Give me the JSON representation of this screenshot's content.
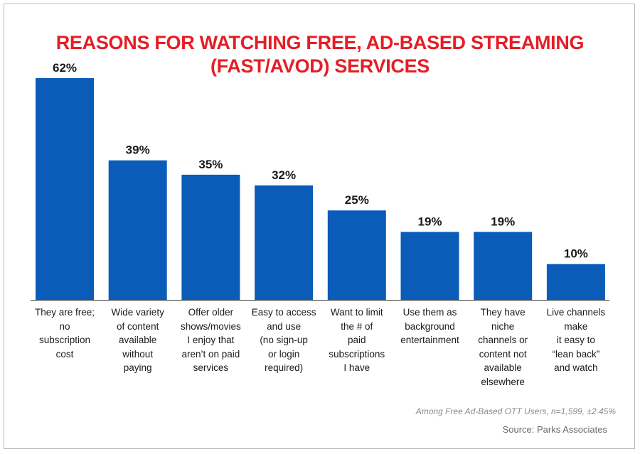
{
  "chart_data": {
    "type": "bar",
    "title_lines": [
      "REASONS FOR WATCHING FREE, AD-BASED STREAMING",
      "(FAST/AVOD) SERVICES"
    ],
    "categories": [
      "They are free;\nno\nsubscription\ncost",
      "Wide variety\nof content\navailable\nwithout\npaying",
      "Offer older\nshows/movies\nI enjoy that\naren’t on paid\nservices",
      "Easy to access\nand use\n(no sign-up\nor login\nrequired)",
      "Want to limit\nthe # of\npaid\nsubscriptions\nI have",
      "Use them as\nbackground\nentertainment",
      "They have\nniche\nchannels or\ncontent not\navailable\nelsewhere",
      "Live channels\nmake\nit easy to\n“lean back”\nand watch"
    ],
    "values": [
      62,
      39,
      35,
      32,
      25,
      19,
      19,
      10
    ],
    "value_labels": [
      "62%",
      "39%",
      "35%",
      "32%",
      "25%",
      "19%",
      "19%",
      "10%"
    ],
    "ylim": [
      0,
      62
    ],
    "grid": false,
    "bar_color": "#0a5cb8",
    "title_color": "#e41e26"
  },
  "footnote": "Among Free Ad-Based OTT Users, n=1,599, ±2.45%",
  "source": "Source: Parks Associates"
}
